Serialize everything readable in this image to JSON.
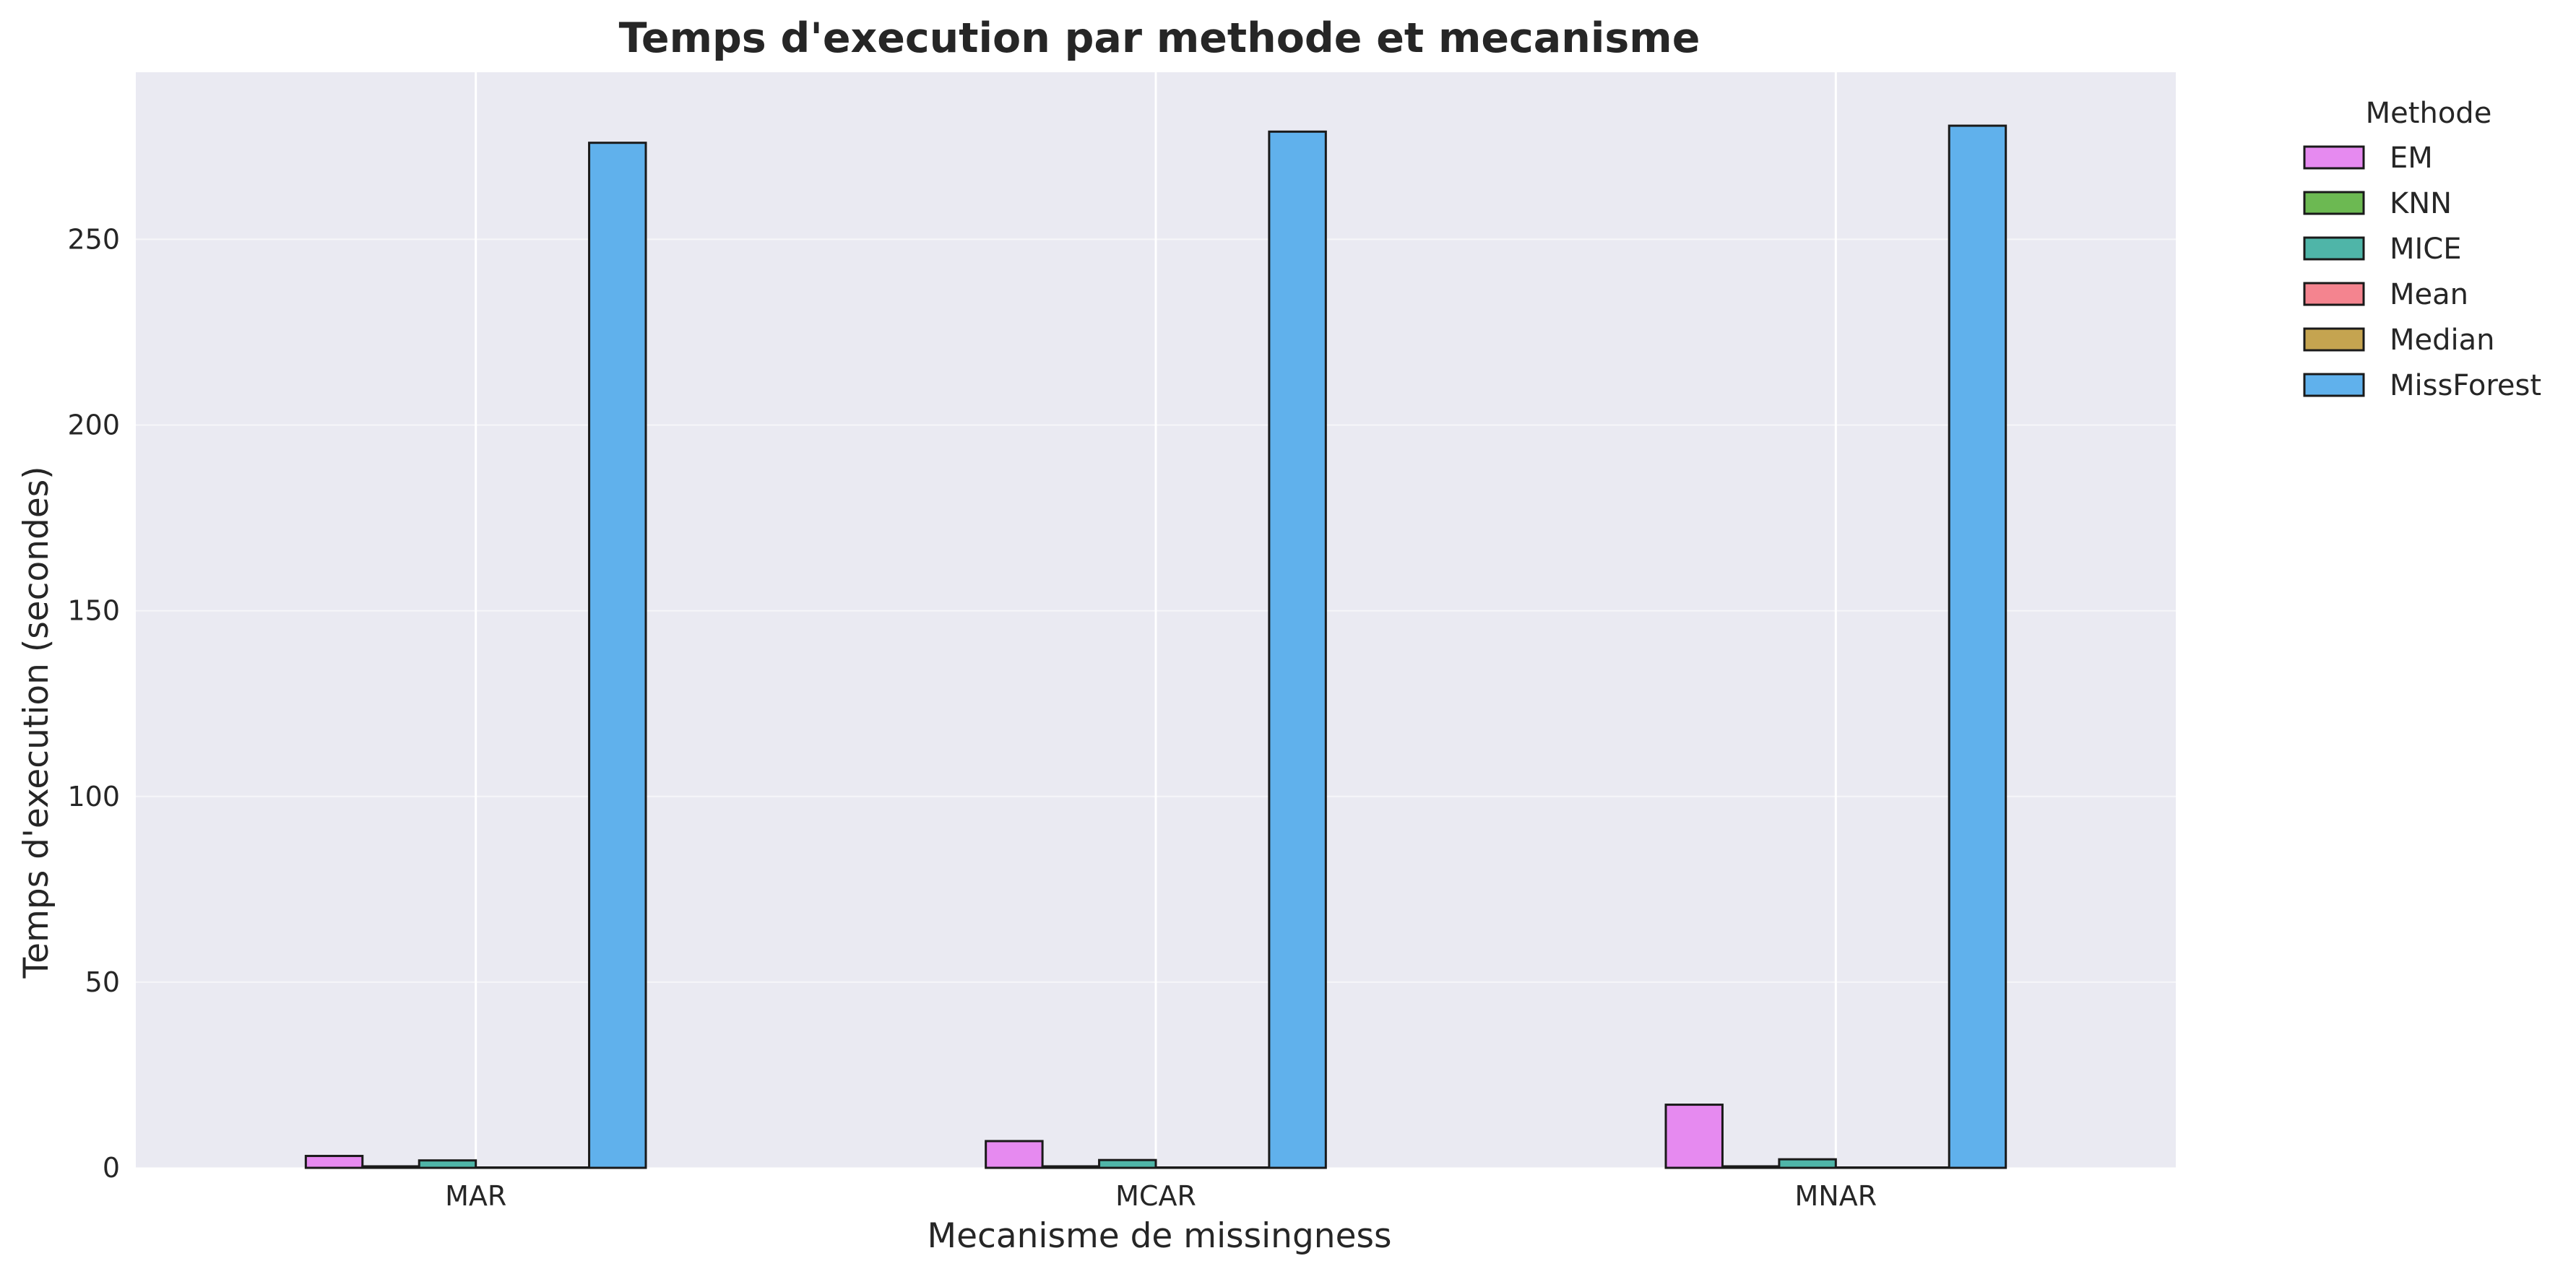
{
  "chart_data": {
    "type": "bar",
    "title": "Temps d'execution par methode et mecanisme",
    "xlabel": "Mecanisme de missingness",
    "ylabel": "Temps d'execution (secondes)",
    "categories": [
      "MAR",
      "MCAR",
      "MNAR"
    ],
    "ylim": [
      0,
      295
    ],
    "yticks": [
      0,
      50,
      100,
      150,
      200,
      250
    ],
    "grid": true,
    "legend": {
      "title": "Methode",
      "placement": "outside-top-right"
    },
    "series": [
      {
        "name": "EM",
        "color": "#e68af0",
        "values": [
          3.2,
          7.2,
          17.0
        ]
      },
      {
        "name": "KNN",
        "color": "#6cb952",
        "values": [
          0.4,
          0.4,
          0.4
        ]
      },
      {
        "name": "MICE",
        "color": "#4fb5a8",
        "values": [
          2.0,
          2.1,
          2.3
        ]
      },
      {
        "name": "Mean",
        "color": "#f4848f",
        "values": [
          0.05,
          0.05,
          0.05
        ]
      },
      {
        "name": "Median",
        "color": "#c5a450",
        "values": [
          0.05,
          0.05,
          0.05
        ]
      },
      {
        "name": "MissForest",
        "color": "#60b1ec",
        "values": [
          276.0,
          279.0,
          280.6
        ]
      }
    ]
  }
}
